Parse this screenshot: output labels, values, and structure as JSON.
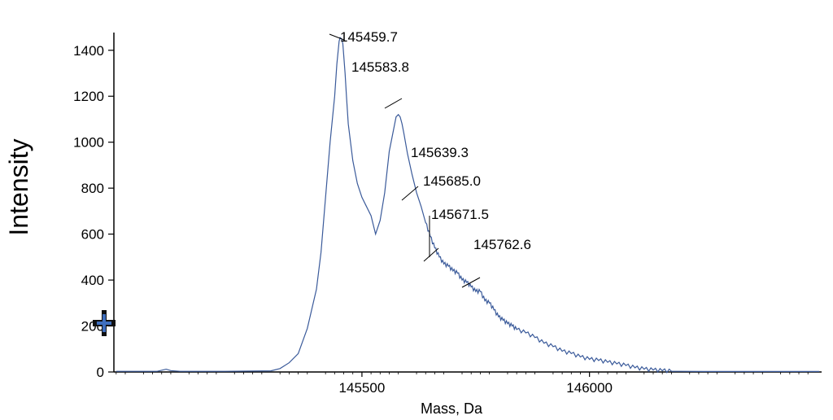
{
  "chart_data": {
    "type": "line",
    "title": "",
    "xlabel": "Mass, Da",
    "ylabel": "Intensity",
    "xlim": [
      144955,
      146510
    ],
    "ylim": [
      0,
      1470
    ],
    "x_ticks": [
      145500,
      146000
    ],
    "x_tick_labels": [
      "145500",
      "146000"
    ],
    "y_ticks": [
      0,
      200,
      400,
      600,
      800,
      1000,
      1200,
      1400
    ],
    "y_tick_labels": [
      "0",
      "200",
      "400",
      "600",
      "800",
      "1000",
      "1200",
      "1400"
    ],
    "grid": false,
    "legend": false,
    "line_color": "#3a5a9a",
    "series": [
      {
        "x": [
          144960,
          145010,
          145050,
          145070,
          145080,
          145100,
          145200,
          145300,
          145320,
          145340,
          145360,
          145380,
          145400,
          145410,
          145420,
          145430,
          145440,
          145445,
          145450,
          145452,
          145455,
          145458,
          145460,
          145463,
          145466,
          145470,
          145480,
          145490,
          145500,
          145510,
          145520,
          145530,
          145540,
          145550,
          145560,
          145570,
          145575,
          145580,
          145584,
          145588,
          145592,
          145600,
          145610,
          145620,
          145630,
          145640,
          145650,
          145660,
          145670,
          145680,
          145690,
          145700,
          145710,
          145720,
          145730,
          145740,
          145750,
          145760,
          145770,
          145780,
          145790,
          145800,
          145810,
          145820,
          145830,
          145840,
          145860,
          145880,
          145900,
          145920,
          145940,
          145960,
          145980,
          146000,
          146020,
          146040,
          146060,
          146080,
          146100,
          146120,
          146140,
          146160,
          146180,
          146200,
          146250,
          146300,
          146400,
          146505
        ],
        "y": [
          3,
          3,
          3,
          12,
          6,
          3,
          3,
          5,
          15,
          40,
          80,
          190,
          360,
          520,
          760,
          1000,
          1200,
          1340,
          1440,
          1455,
          1450,
          1430,
          1380,
          1300,
          1200,
          1080,
          920,
          820,
          760,
          720,
          680,
          600,
          660,
          780,
          960,
          1060,
          1110,
          1120,
          1110,
          1080,
          1040,
          950,
          860,
          780,
          720,
          650,
          590,
          540,
          500,
          470,
          460,
          440,
          430,
          400,
          390,
          370,
          350,
          350,
          310,
          300,
          270,
          240,
          225,
          210,
          200,
          185,
          170,
          150,
          125,
          110,
          90,
          80,
          65,
          55,
          50,
          42,
          35,
          28,
          18,
          12,
          8,
          5,
          3,
          3,
          2,
          2,
          2,
          2
        ]
      }
    ],
    "peak_labels": [
      {
        "text": "145459.7",
        "x": 145459.7,
        "y": 1450
      },
      {
        "text": "145583.8",
        "x": 145583.8,
        "y": 1120
      },
      {
        "text": "145639.3",
        "x": 145639.3,
        "y": 720
      },
      {
        "text": "145685.0",
        "x": 145685.0,
        "y": 470
      },
      {
        "text": "145671.5",
        "x": 145671.5,
        "y": 460
      },
      {
        "text": "145762.6",
        "x": 145762.6,
        "y": 350
      }
    ]
  }
}
